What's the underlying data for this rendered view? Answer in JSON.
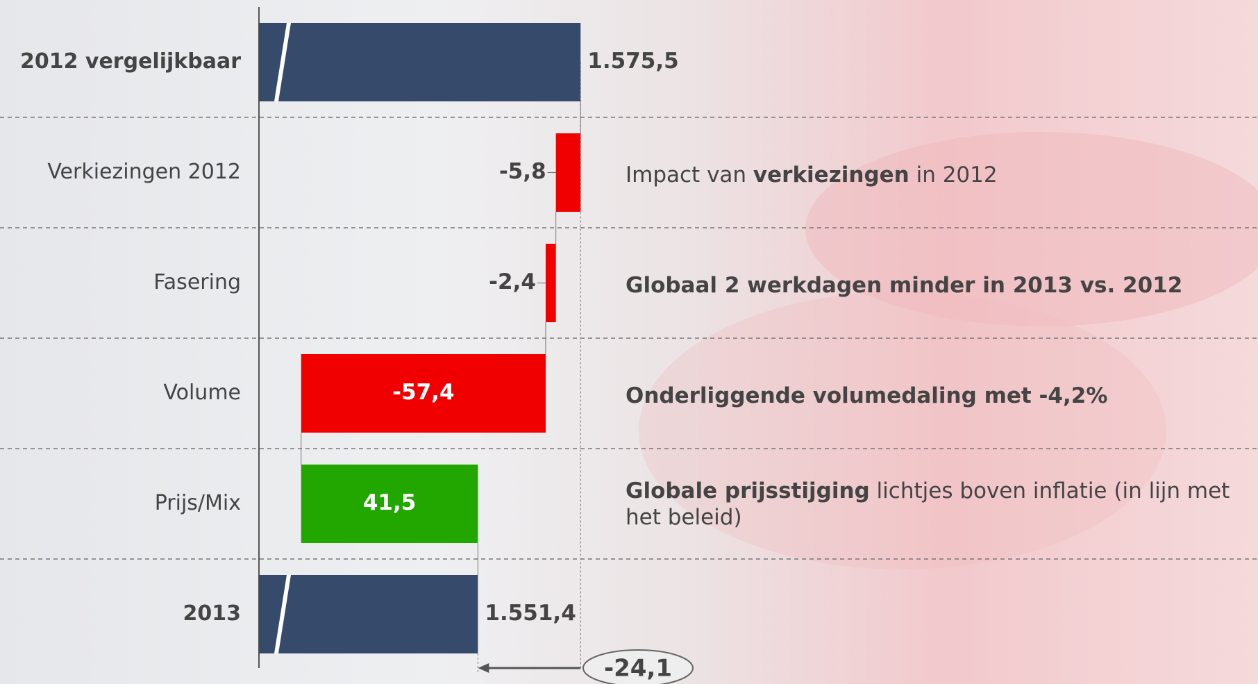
{
  "chart_data": {
    "type": "waterfall",
    "categories": [
      "2012 vergelijkbaar",
      "Verkiezingen 2012",
      "Fasering",
      "Volume",
      "Prijs/Mix",
      "2013"
    ],
    "values": [
      1575.5,
      -5.8,
      -2.4,
      -57.4,
      41.5,
      1551.4
    ],
    "value_labels": [
      "1.575,5",
      "-5,8",
      "-2,4",
      "-57,4",
      "41,5",
      "1.551,4"
    ],
    "measure": [
      "total",
      "relative",
      "relative",
      "relative",
      "relative",
      "total"
    ],
    "colors": {
      "total": "#364a6b",
      "decrease": "#f00000",
      "increase": "#22a600"
    },
    "xlim": [
      1500,
      1580
    ],
    "axis_break": true,
    "total_change": {
      "value": -24.1,
      "label": "-24,1"
    },
    "comments": [
      null,
      [
        {
          "text": "Impact van "
        },
        {
          "text": "verkiezingen",
          "bold": true
        },
        {
          "text": " in 2012"
        }
      ],
      [
        {
          "text": "Globaal 2 werkdagen minder in 2013 vs. 2012",
          "bold": true
        }
      ],
      [
        {
          "text": "Onderliggende volumedaling met -4,2%",
          "bold": true
        }
      ],
      [
        {
          "text": "Globale prijsstijging",
          "bold": true
        },
        {
          "text": " lichtjes boven inflatie (in lijn met het beleid)"
        }
      ],
      null
    ]
  }
}
